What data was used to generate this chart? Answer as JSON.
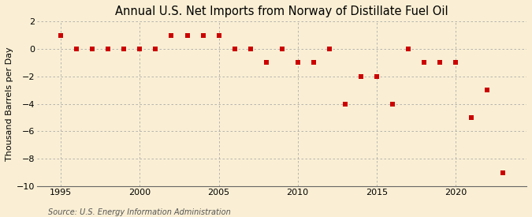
{
  "title": "Annual U.S. Net Imports from Norway of Distillate Fuel Oil",
  "ylabel": "Thousand Barrels per Day",
  "source": "Source: U.S. Energy Information Administration",
  "years": [
    1995,
    1996,
    1997,
    1998,
    1999,
    2000,
    2001,
    2002,
    2003,
    2004,
    2005,
    2006,
    2007,
    2008,
    2009,
    2010,
    2011,
    2012,
    2013,
    2014,
    2015,
    2016,
    2017,
    2018,
    2019,
    2020,
    2021,
    2022,
    2023
  ],
  "values": [
    1,
    0,
    0,
    0,
    0,
    0,
    0,
    1,
    1,
    1,
    1,
    0,
    0,
    -1,
    0,
    -1,
    -1,
    0,
    -4,
    -2,
    -2,
    -4,
    0,
    -1,
    -1,
    -1,
    -5,
    -3,
    -9
  ],
  "ylim": [
    -10,
    2
  ],
  "yticks": [
    -10,
    -8,
    -6,
    -4,
    -2,
    0,
    2
  ],
  "xlim": [
    1993.5,
    2024.5
  ],
  "xticks": [
    1995,
    2000,
    2005,
    2010,
    2015,
    2020
  ],
  "marker_color": "#cc0000",
  "marker": "s",
  "marker_size": 16,
  "bg_color": "#faefd4",
  "grid_color": "#aaaaaa",
  "title_fontsize": 10.5,
  "label_fontsize": 8,
  "tick_fontsize": 8,
  "source_fontsize": 7
}
